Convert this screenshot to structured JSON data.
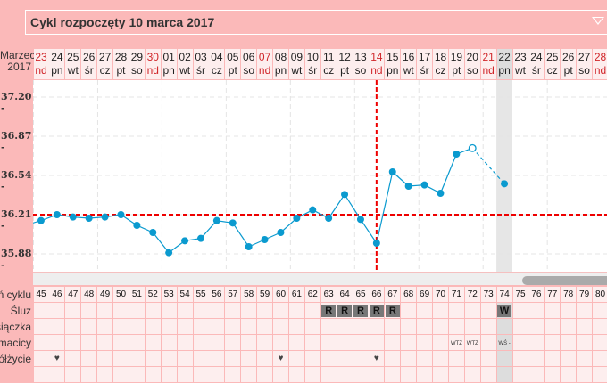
{
  "header": {
    "title": "Cykl rozpoczęty 10 marca 2017"
  },
  "month_label": {
    "month": "Marzec",
    "year": "2017"
  },
  "days": [
    {
      "d": "23",
      "w": "nd",
      "red": true
    },
    {
      "d": "24",
      "w": "pn"
    },
    {
      "d": "25",
      "w": "wt"
    },
    {
      "d": "26",
      "w": "śr"
    },
    {
      "d": "27",
      "w": "cz"
    },
    {
      "d": "28",
      "w": "pt"
    },
    {
      "d": "29",
      "w": "so"
    },
    {
      "d": "30",
      "w": "nd",
      "red": true
    },
    {
      "d": "01",
      "w": "pn"
    },
    {
      "d": "02",
      "w": "wt"
    },
    {
      "d": "03",
      "w": "śr"
    },
    {
      "d": "04",
      "w": "cz"
    },
    {
      "d": "05",
      "w": "pt"
    },
    {
      "d": "06",
      "w": "so"
    },
    {
      "d": "07",
      "w": "nd",
      "red": true
    },
    {
      "d": "08",
      "w": "pn"
    },
    {
      "d": "09",
      "w": "wt"
    },
    {
      "d": "10",
      "w": "śr"
    },
    {
      "d": "11",
      "w": "cz"
    },
    {
      "d": "12",
      "w": "pt"
    },
    {
      "d": "13",
      "w": "so"
    },
    {
      "d": "14",
      "w": "nd",
      "red": true
    },
    {
      "d": "15",
      "w": "pn"
    },
    {
      "d": "16",
      "w": "wt"
    },
    {
      "d": "17",
      "w": "śr"
    },
    {
      "d": "18",
      "w": "cz"
    },
    {
      "d": "19",
      "w": "pt"
    },
    {
      "d": "20",
      "w": "so"
    },
    {
      "d": "21",
      "w": "nd",
      "red": true
    },
    {
      "d": "22",
      "w": "pn",
      "today": true
    },
    {
      "d": "23",
      "w": "wt"
    },
    {
      "d": "24",
      "w": "śr"
    },
    {
      "d": "25",
      "w": "cz"
    },
    {
      "d": "26",
      "w": "pt"
    },
    {
      "d": "27",
      "w": "so"
    },
    {
      "d": "28",
      "w": "nd",
      "red": true
    }
  ],
  "y_ticks": [
    "37.20",
    "36.87",
    "36.54",
    "36.21",
    "35.88"
  ],
  "chart_data": {
    "type": "line",
    "ylim": [
      35.72,
      37.32
    ],
    "coverline": 36.21,
    "ovulation_index": 21,
    "temps": [
      36.16,
      36.21,
      36.19,
      36.18,
      36.19,
      36.21,
      36.12,
      36.06,
      35.89,
      35.99,
      36.01,
      36.16,
      36.14,
      35.94,
      36.0,
      36.06,
      36.18,
      36.25,
      36.18,
      36.38,
      36.17,
      35.97,
      36.57,
      36.45,
      36.46,
      36.39,
      36.72,
      36.77,
      null,
      36.47,
      null,
      null,
      null,
      null,
      null,
      null
    ],
    "open_index": 27
  },
  "rows": {
    "labels": [
      "Dzień cyklu",
      "Śluz",
      "Miesiączka",
      "Szyjka macicy",
      "Współżycie",
      ""
    ],
    "cycle_days": [
      "45",
      "46",
      "47",
      "48",
      "49",
      "50",
      "51",
      "52",
      "53",
      "54",
      "55",
      "56",
      "57",
      "58",
      "59",
      "60",
      "61",
      "62",
      "63",
      "64",
      "65",
      "66",
      "67",
      "68",
      "69",
      "70",
      "71",
      "72",
      "73",
      "74",
      "75",
      "76",
      "77",
      "78",
      "79",
      "80"
    ],
    "mucus": {
      "18": "R",
      "19": "R",
      "20": "R",
      "21": "R",
      "22": "R",
      "29": "W"
    },
    "cervix": {
      "26": "WTZ",
      "27": "WTZ",
      "29": "WŚ -"
    },
    "intercourse": [
      1,
      15,
      21
    ]
  },
  "colors": {
    "line": "#0a9acf",
    "coverline": "#ee0000",
    "bg": "#fbb9b9"
  }
}
